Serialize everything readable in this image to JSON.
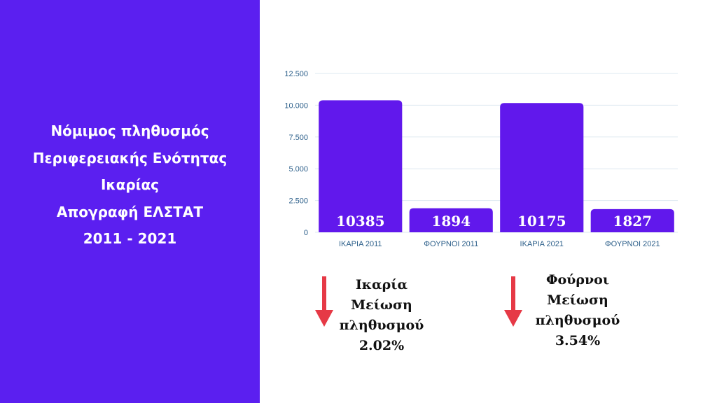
{
  "title_lines": [
    "Νόμιμος πληθυσμός",
    "Περιφερειακής Ενότητας",
    "Ικαρίας",
    "Απογραφή ΕΛΣΤΑΤ",
    "2011 - 2021"
  ],
  "colors": {
    "panel": "#5b1ff0",
    "bar": "#6118ec",
    "arrow": "#e63946",
    "grid": "#dde8f0",
    "tick": "#2c5f8a"
  },
  "chart_data": {
    "type": "bar",
    "categories": [
      "ΙΚΑΡΙΑ 2011",
      "ΦΟΥΡΝΟΙ 2011",
      "ΙΚΑΡΙΑ 2021",
      "ΦΟΥΡΝΟΙ 2021"
    ],
    "values": [
      10385,
      1894,
      10175,
      1827
    ],
    "value_labels": [
      "10385",
      "1894",
      "10175",
      "1827"
    ],
    "yticks": [
      "0",
      "2.500",
      "5.000",
      "7.500",
      "10.000",
      "12.500"
    ],
    "ylim": [
      0,
      12500
    ],
    "grid": true
  },
  "notes": [
    {
      "icon": "arrow-down-icon",
      "lines": [
        "Ικαρία",
        "Μείωση",
        "πληθυσμού",
        "2.02%"
      ]
    },
    {
      "icon": "arrow-down-icon",
      "lines": [
        "Φούρνοι",
        "Μείωση",
        "πληθυσμού",
        "3.54%"
      ]
    }
  ]
}
